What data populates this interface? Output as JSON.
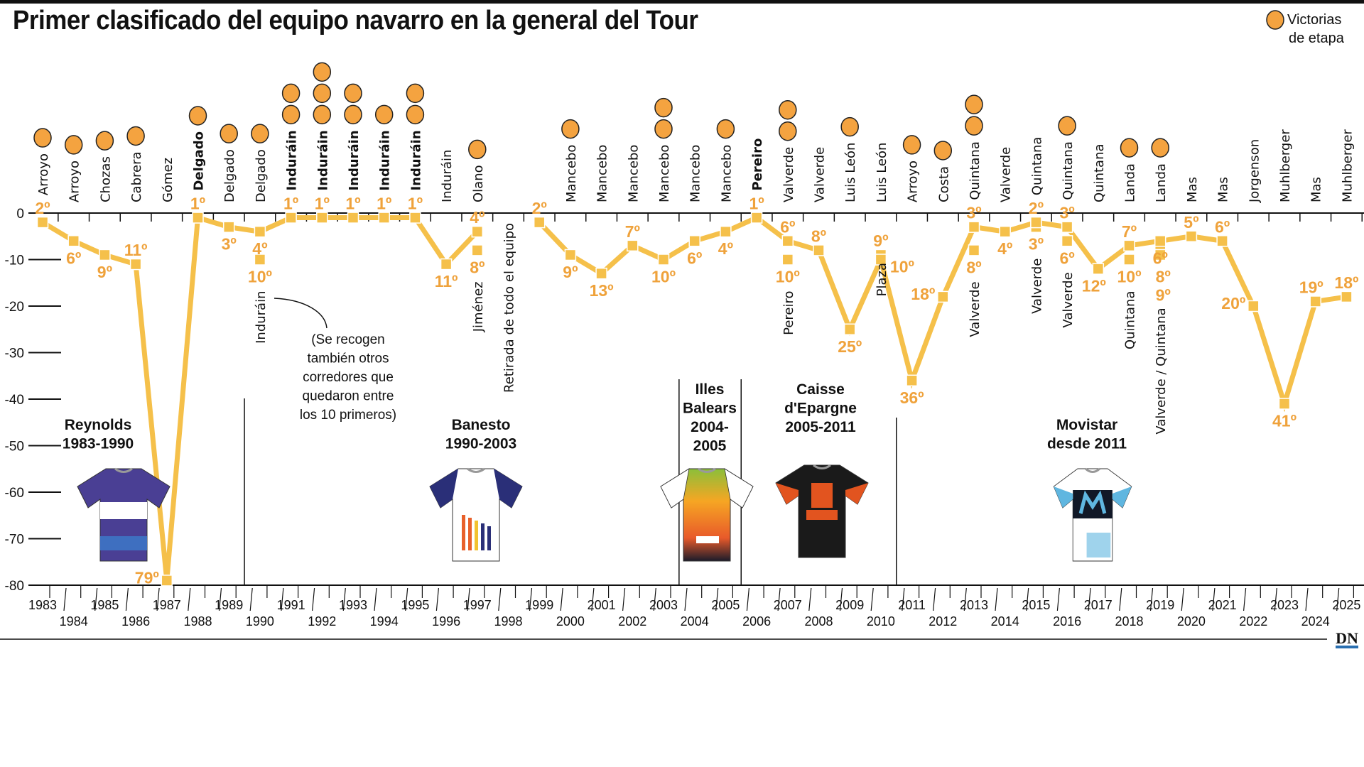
{
  "title": "Primer clasificado del equipo navarro en la general del Tour",
  "legend": {
    "line1": "Victorias",
    "line2": "de etapa",
    "marker": "orange-circle"
  },
  "logo": "DN",
  "annotation": [
    "(Se recogen",
    "también otros",
    "corredores que",
    "quedaron entre",
    "los 10 primeros)"
  ],
  "colors": {
    "line": "#f5c04a",
    "rank_text": "#efa23b",
    "win_circle": "#f4a340",
    "axis": "#111111"
  },
  "chart_data": {
    "type": "line",
    "title": "Primer clasificado del equipo navarro en la general del Tour",
    "xlim": [
      1983,
      2025
    ],
    "ylim": [
      -80,
      0
    ],
    "y_ticks": [
      0,
      -10,
      -20,
      -30,
      -40,
      -50,
      -60,
      -70,
      -80
    ],
    "grid": false,
    "legend_placement": "top-right",
    "series": [
      {
        "year": 1983,
        "rider": "Arroyo",
        "position": 2,
        "wins": 1
      },
      {
        "year": 1984,
        "rider": "Arroyo",
        "position": 6,
        "wins": 1
      },
      {
        "year": 1985,
        "rider": "Chozas",
        "position": 9,
        "wins": 1
      },
      {
        "year": 1986,
        "rider": "Cabrera",
        "position": 11,
        "wins": 1
      },
      {
        "year": 1987,
        "rider": "Gómez",
        "position": 79,
        "wins": 0
      },
      {
        "year": 1988,
        "rider": "Delgado",
        "position": 1,
        "wins": 1,
        "winner": true
      },
      {
        "year": 1989,
        "rider": "Delgado",
        "position": 3,
        "wins": 1
      },
      {
        "year": 1990,
        "rider": "Delgado",
        "position": 4,
        "wins": 1,
        "others": [
          {
            "rider": "Induráin",
            "position": 10
          }
        ]
      },
      {
        "year": 1991,
        "rider": "Induráin",
        "position": 1,
        "wins": 2,
        "winner": true
      },
      {
        "year": 1992,
        "rider": "Induráin",
        "position": 1,
        "wins": 3,
        "winner": true
      },
      {
        "year": 1993,
        "rider": "Induráin",
        "position": 1,
        "wins": 2,
        "winner": true
      },
      {
        "year": 1994,
        "rider": "Induráin",
        "position": 1,
        "wins": 1,
        "winner": true
      },
      {
        "year": 1995,
        "rider": "Induráin",
        "position": 1,
        "wins": 2,
        "winner": true
      },
      {
        "year": 1996,
        "rider": "Induráin",
        "position": 11,
        "wins": 0
      },
      {
        "year": 1997,
        "rider": "Olano",
        "position": 4,
        "wins": 1,
        "others": [
          {
            "rider": "Jiménez",
            "position": 8
          }
        ]
      },
      {
        "year": 1998,
        "note": "Retirada de todo el equipo"
      },
      {
        "year": 1999,
        "position": 2,
        "wins": 0
      },
      {
        "year": 2000,
        "rider": "Mancebo",
        "position": 9,
        "wins": 1
      },
      {
        "year": 2001,
        "rider": "Mancebo",
        "position": 13,
        "wins": 0
      },
      {
        "year": 2002,
        "rider": "Mancebo",
        "position": 7,
        "wins": 0
      },
      {
        "year": 2003,
        "rider": "Mancebo",
        "position": 10,
        "wins": 2
      },
      {
        "year": 2004,
        "rider": "Mancebo",
        "position": 6,
        "wins": 0
      },
      {
        "year": 2005,
        "rider": "Mancebo",
        "position": 4,
        "wins": 1
      },
      {
        "year": 2006,
        "rider": "Pereiro",
        "position": 1,
        "wins": 0,
        "winner": true
      },
      {
        "year": 2007,
        "rider": "Valverde",
        "position": 6,
        "wins": 2,
        "others": [
          {
            "rider": "Pereiro",
            "position": 10
          }
        ]
      },
      {
        "year": 2008,
        "rider": "Valverde",
        "position": 8,
        "wins": 0
      },
      {
        "year": 2009,
        "rider": "Luis León",
        "position": 25,
        "wins": 1
      },
      {
        "year": 2010,
        "rider": "Luis León",
        "position": 10,
        "wins": 0,
        "others": [
          {
            "rider": "Plaza",
            "position": 9
          }
        ]
      },
      {
        "year": 2011,
        "rider": "Arroyo",
        "position": 36,
        "wins": 1
      },
      {
        "year": 2012,
        "rider": "Costa",
        "position": 18,
        "wins": 1
      },
      {
        "year": 2013,
        "rider": "Quintana",
        "position": 3,
        "wins": 2,
        "others": [
          {
            "rider": "Valverde",
            "position": 8
          }
        ]
      },
      {
        "year": 2014,
        "rider": "Valverde",
        "position": 4,
        "wins": 0
      },
      {
        "year": 2015,
        "rider": "Quintana",
        "position": 2,
        "wins": 0,
        "others": [
          {
            "rider": "Valverde",
            "position": 3
          }
        ]
      },
      {
        "year": 2016,
        "rider": "Quintana",
        "position": 3,
        "wins": 1,
        "others": [
          {
            "rider": "Valverde",
            "position": 6
          }
        ]
      },
      {
        "year": 2017,
        "rider": "Quintana",
        "position": 12,
        "wins": 0
      },
      {
        "year": 2018,
        "rider": "Landa",
        "position": 7,
        "wins": 1,
        "others": [
          {
            "rider": "Quintana",
            "position": 10
          }
        ]
      },
      {
        "year": 2019,
        "rider": "Landa",
        "position": 6,
        "wins": 1,
        "others": [
          {
            "rider": "Valverde / Quintana",
            "position": 8
          },
          {
            "position": 9
          }
        ]
      },
      {
        "year": 2020,
        "rider": "Mas",
        "position": 5,
        "wins": 0
      },
      {
        "year": 2021,
        "rider": "Mas",
        "position": 6,
        "wins": 0
      },
      {
        "year": 2022,
        "rider": "Jorgenson",
        "position": 20,
        "wins": 0
      },
      {
        "year": 2023,
        "rider": "Muhlberger",
        "position": 41,
        "wins": 0
      },
      {
        "year": 2024,
        "rider": "Mas",
        "position": 19,
        "wins": 0
      },
      {
        "year": 2025,
        "rider": "Muhlberger",
        "position": 18,
        "wins": 0
      }
    ],
    "teams": [
      {
        "name": "Reynolds",
        "period": "1983-1990",
        "label": [
          "Reynolds",
          "1983-1990"
        ],
        "jersey_colors": [
          "#4a3f94",
          "#ffffff",
          "#3e6fc0"
        ]
      },
      {
        "name": "Banesto",
        "period": "1990-2003",
        "label": [
          "Banesto",
          "1990-2003"
        ],
        "jersey_colors": [
          "#ffffff",
          "#2a2f78",
          "#e8602a"
        ]
      },
      {
        "name": "Illes Balears",
        "period": "2004-2005",
        "label": [
          "Illes",
          "Balears",
          "2004-",
          "2005"
        ],
        "jersey_colors": [
          "#f6a623",
          "#e85a2a",
          "#1b1b2a"
        ]
      },
      {
        "name": "Caisse d'Epargne",
        "period": "2005-2011",
        "label": [
          "Caisse",
          "d'Epargne",
          "2005-2011"
        ],
        "jersey_colors": [
          "#1a1a1a",
          "#e2541f",
          "#ffffff"
        ]
      },
      {
        "name": "Movistar",
        "period": "desde 2011",
        "label": [
          "Movistar",
          "desde 2011"
        ],
        "jersey_colors": [
          "#ffffff",
          "#111827",
          "#5fb6e0"
        ]
      }
    ]
  }
}
